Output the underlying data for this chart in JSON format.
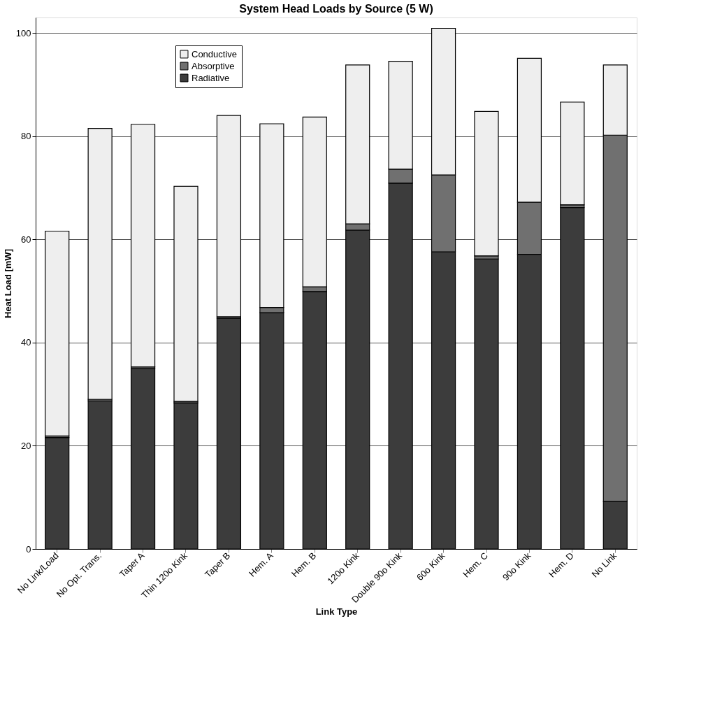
{
  "chart_data": {
    "type": "bar",
    "title": "System Head Loads by Source (5 W)",
    "xlabel": "Link Type",
    "ylabel": "Heat Load [mW]",
    "categories": [
      "No Link/Load",
      "No Opt. Trans.",
      "Taper A",
      "Thin 120o Kink",
      "Taper B",
      "Hem. A",
      "Hem. B",
      "120o Kink",
      "Double 90o Kink",
      "60o Kink",
      "Hem. C",
      "90o Kink",
      "Hem. D",
      "No Link"
    ],
    "stacked": true,
    "series": [
      {
        "name": "Radiative",
        "color": "#3c3c3c",
        "values": [
          21.6,
          28.7,
          35.0,
          28.3,
          44.7,
          45.8,
          49.9,
          61.8,
          70.9,
          57.6,
          56.2,
          57.1,
          66.2,
          9.2
        ]
      },
      {
        "name": "Absorptive",
        "color": "#707070",
        "values": [
          0.3,
          0.3,
          0.3,
          0.3,
          0.3,
          1.0,
          0.9,
          1.2,
          2.7,
          14.9,
          0.6,
          10.1,
          0.5,
          71.0
        ]
      },
      {
        "name": "Conductive",
        "color": "#eeeeee",
        "values": [
          39.7,
          52.5,
          47.0,
          41.7,
          39.0,
          35.6,
          32.9,
          30.8,
          20.9,
          28.4,
          28.0,
          27.9,
          19.9,
          13.6
        ]
      }
    ],
    "ylim": [
      0,
      103
    ],
    "yticks": [
      0,
      20,
      40,
      60,
      80,
      100
    ],
    "grid": "y",
    "legend": "top left"
  }
}
